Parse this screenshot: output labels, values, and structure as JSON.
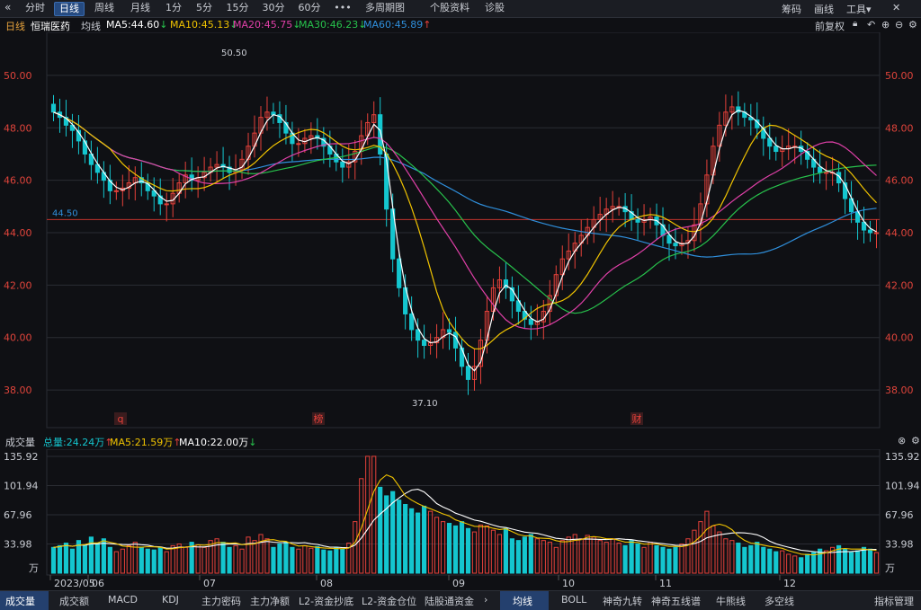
{
  "toolbar": {
    "back_icon": "«",
    "tabs": [
      "分时",
      "日线",
      "周线",
      "月线",
      "1分",
      "5分",
      "15分",
      "30分",
      "60分",
      "•••",
      "多周期图",
      "个股资料",
      "诊股"
    ],
    "active_tab": "日线",
    "right": [
      "筹码",
      "画线",
      "工具▾"
    ],
    "close_icon": "✕"
  },
  "header": {
    "period": "日线",
    "stock_name": "恒瑞医药",
    "ma_label": "均线",
    "ma5": "MA5:44.60",
    "ma5_arrow": "↓",
    "ma10": "MA10:45.13",
    "ma10_arrow": "↓",
    "ma20": "MA20:45.75",
    "ma20_arrow": "↓",
    "ma30": "MA30:46.23",
    "ma30_arrow": "↓",
    "ma60": "MA60:45.89",
    "ma60_arrow": "↑",
    "adjust": "前复权"
  },
  "colors": {
    "up": "#e6413a",
    "down": "#14c6cf",
    "ma5": "#ffffff",
    "ma10": "#f0c300",
    "ma20": "#e040a8",
    "ma30": "#27c24c",
    "ma60": "#2f8fdc",
    "grid": "#2a2c33",
    "axis": "#e0443b"
  },
  "price_axis": {
    "ticks": [
      "50.00",
      "48.00",
      "46.00",
      "44.00",
      "42.00",
      "40.00",
      "38.00"
    ],
    "values": [
      50,
      48,
      46,
      44,
      42,
      40,
      38
    ],
    "ymin": 36.7,
    "ymax": 51.3
  },
  "annotations": {
    "high": "50.50",
    "low": "37.10",
    "ref_line": "44.50",
    "ref_value": 44.5,
    "markers": [
      "q",
      "榜",
      "财"
    ]
  },
  "x_labels": [
    "2023/05",
    "06",
    "07",
    "08",
    "09",
    "10",
    "11",
    "12"
  ],
  "volume": {
    "title": "成交量",
    "total": "总量:24.24万",
    "total_arrow": "↑",
    "ma5": "MA5:21.59万",
    "ma5_arrow": "↑",
    "ma10": "MA10:22.00万",
    "ma10_arrow": "↓",
    "ticks": [
      "135.92",
      "101.94",
      "67.96",
      "33.98"
    ],
    "unit": "万",
    "tick_values": [
      135.92,
      101.94,
      67.96,
      33.98
    ],
    "vmax": 135.92
  },
  "bottom_tabs": {
    "left": [
      "成交量",
      "成交额",
      "MACD",
      "KDJ",
      "主力密码",
      "主力净额",
      "L2-资金抄底",
      "L2-资金仓位",
      "陆股通资金"
    ],
    "right": [
      "均线",
      "BOLL",
      "神奇九转",
      "神奇五线谱",
      "牛熊线",
      "多空线",
      "指标管理"
    ],
    "active_left": "成交量",
    "active_right": "均线"
  },
  "chart_data": {
    "type": "candlestick",
    "title": "恒瑞医药 日线",
    "months": [
      "2023/05",
      "06",
      "07",
      "08",
      "09",
      "10",
      "11",
      "12"
    ],
    "closes": [
      48.6,
      48.4,
      48.1,
      47.9,
      47.5,
      47.0,
      46.6,
      46.3,
      46.0,
      45.6,
      45.6,
      45.7,
      45.9,
      46.1,
      45.9,
      45.6,
      45.4,
      45.1,
      45.1,
      45.5,
      45.9,
      46.2,
      46.0,
      46.1,
      46.3,
      46.5,
      46.6,
      46.5,
      46.3,
      46.4,
      46.8,
      47.3,
      47.8,
      48.4,
      48.6,
      48.5,
      48.2,
      47.8,
      47.4,
      47.4,
      47.6,
      47.7,
      47.6,
      47.3,
      47.0,
      46.7,
      46.5,
      46.7,
      47.1,
      47.7,
      48.2,
      48.5,
      47.0,
      44.9,
      43.0,
      41.9,
      40.9,
      40.3,
      39.9,
      39.7,
      39.8,
      40.0,
      40.3,
      40.2,
      39.6,
      38.9,
      38.4,
      38.9,
      39.9,
      41.0,
      41.9,
      42.2,
      41.9,
      41.4,
      41.0,
      40.7,
      40.5,
      40.6,
      41.0,
      41.6,
      42.4,
      43.0,
      43.3,
      43.6,
      43.9,
      44.2,
      44.5,
      44.7,
      44.9,
      45.0,
      45.0,
      44.8,
      44.5,
      44.4,
      44.5,
      44.6,
      44.3,
      43.9,
      43.6,
      43.5,
      43.6,
      43.7,
      44.3,
      45.1,
      46.2,
      47.3,
      48.1,
      48.6,
      48.8,
      48.6,
      48.4,
      48.3,
      48.0,
      47.6,
      47.3,
      47.1,
      47.2,
      47.3,
      47.3,
      47.1,
      46.8,
      46.5,
      46.3,
      46.3,
      46.3,
      45.9,
      45.3,
      44.8,
      44.4,
      44.1,
      44.0,
      44.0
    ],
    "volumes": [
      30,
      32,
      35,
      28,
      38,
      33,
      42,
      35,
      40,
      30,
      25,
      28,
      32,
      36,
      30,
      28,
      27,
      30,
      25,
      32,
      34,
      30,
      36,
      33,
      30,
      38,
      40,
      36,
      30,
      32,
      28,
      42,
      38,
      45,
      40,
      30,
      34,
      36,
      30,
      28,
      32,
      29,
      31,
      27,
      26,
      30,
      28,
      35,
      60,
      110,
      136,
      136,
      100,
      90,
      95,
      85,
      80,
      75,
      70,
      78,
      72,
      65,
      60,
      58,
      55,
      60,
      52,
      48,
      56,
      55,
      50,
      45,
      52,
      40,
      38,
      42,
      45,
      40,
      38,
      36,
      30,
      38,
      42,
      45,
      40,
      44,
      42,
      38,
      36,
      40,
      35,
      32,
      38,
      34,
      30,
      36,
      32,
      30,
      28,
      30,
      34,
      40,
      50,
      60,
      72,
      55,
      48,
      40,
      38,
      35,
      30,
      32,
      36,
      30,
      28,
      25,
      26,
      22,
      20,
      18,
      22,
      24,
      28,
      26,
      30,
      32,
      28,
      24,
      26,
      30,
      28,
      24
    ],
    "ma5": [
      47.8,
      47.6,
      47.2,
      46.8,
      46.3,
      45.9,
      45.6,
      45.8,
      45.4,
      45.7,
      46.1,
      46.0,
      46.5,
      47.3,
      48.0,
      48.6,
      48.0,
      47.4,
      47.3,
      47.9,
      47.2,
      46.7,
      46.8,
      47.7,
      48.4,
      45.8,
      41.5,
      39.6,
      39.9,
      40.1,
      39.0,
      39.1,
      41.2,
      41.8,
      40.7,
      40.7,
      42.3,
      43.7,
      44.2,
      44.7,
      44.8,
      44.5,
      44.0,
      43.4,
      44.5,
      47.0,
      48.5,
      48.2,
      47.3,
      47.3,
      46.8,
      46.2,
      45.9,
      44.8,
      44.1,
      44.0
    ],
    "ma60": [
      44.8,
      45.2,
      45.6,
      45.9,
      46.2,
      46.5,
      46.8,
      46.9,
      47.0,
      47.2,
      47.3,
      47.2,
      46.9,
      46.5,
      46.2,
      45.9,
      45.6,
      45.3,
      45.1,
      44.9,
      44.7,
      44.5,
      44.3,
      44.1,
      44.0,
      43.9,
      43.7,
      43.5,
      43.3,
      43.1,
      42.9,
      42.7,
      42.5,
      42.5,
      42.8,
      43.3,
      43.8,
      44.3,
      44.8,
      45.2,
      45.5,
      45.7,
      45.8,
      45.9
    ]
  }
}
